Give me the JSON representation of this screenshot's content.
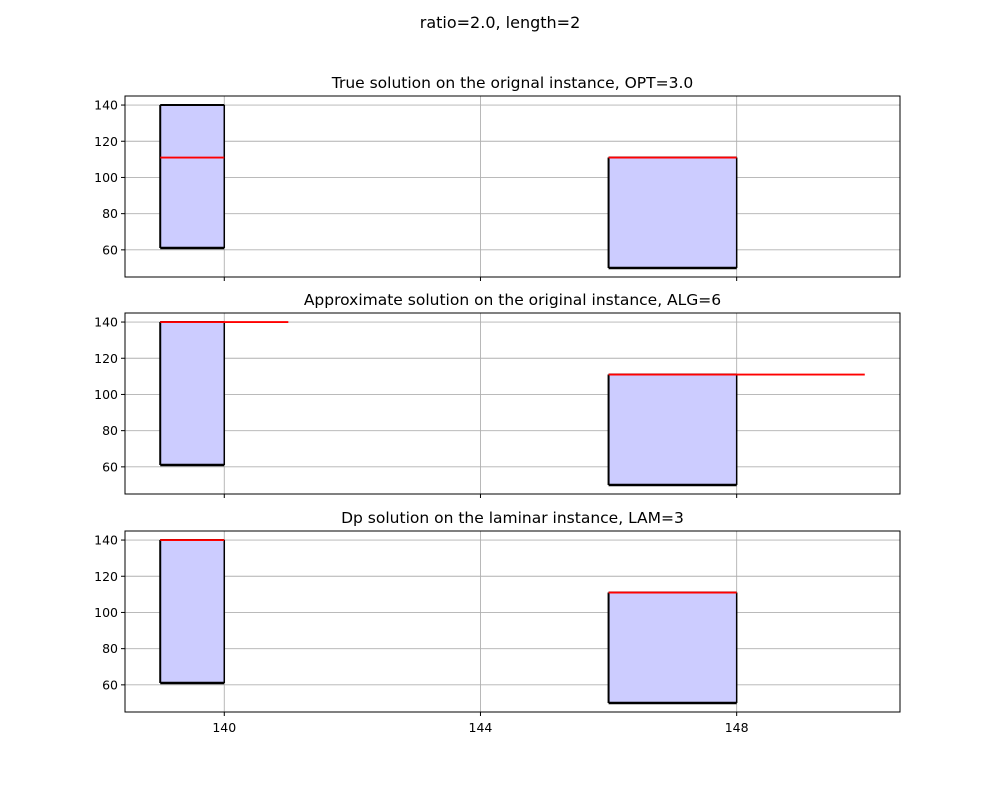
{
  "figure": {
    "suptitle": "ratio=2.0, length=2"
  },
  "chart_data": [
    {
      "type": "bar",
      "title": "True solution on the orignal instance, OPT=3.0",
      "xlabel": "",
      "ylabel": "",
      "xlim": [
        138.45,
        150.55
      ],
      "ylim": [
        45,
        145
      ],
      "xticks": [
        140,
        144,
        148
      ],
      "yticks": [
        60,
        80,
        100,
        120,
        140
      ],
      "show_xtick_labels": false,
      "grid": true,
      "fill_color": "#ccccff",
      "edge_color": "#000000",
      "line_color": "#ff0000",
      "boxes": [
        {
          "x0": 139,
          "x1": 140,
          "y0": 61,
          "y1": 140
        },
        {
          "x0": 146,
          "x1": 148,
          "y0": 50,
          "y1": 111
        }
      ],
      "lines": [
        {
          "x0": 139,
          "x1": 140,
          "y": 111
        },
        {
          "x0": 146,
          "x1": 148,
          "y": 111
        }
      ]
    },
    {
      "type": "bar",
      "title": "Approximate solution on the original instance, ALG=6",
      "xlabel": "",
      "ylabel": "",
      "xlim": [
        138.45,
        150.55
      ],
      "ylim": [
        45,
        145
      ],
      "xticks": [
        140,
        144,
        148
      ],
      "yticks": [
        60,
        80,
        100,
        120,
        140
      ],
      "show_xtick_labels": false,
      "grid": true,
      "fill_color": "#ccccff",
      "edge_color": "#000000",
      "line_color": "#ff0000",
      "boxes": [
        {
          "x0": 139,
          "x1": 140,
          "y0": 61,
          "y1": 140
        },
        {
          "x0": 146,
          "x1": 148,
          "y0": 50,
          "y1": 111
        }
      ],
      "lines": [
        {
          "x0": 139,
          "x1": 141,
          "y": 140
        },
        {
          "x0": 146,
          "x1": 150,
          "y": 111
        }
      ]
    },
    {
      "type": "bar",
      "title": "Dp solution on the laminar instance, LAM=3",
      "xlabel": "",
      "ylabel": "",
      "xlim": [
        138.45,
        150.55
      ],
      "ylim": [
        45,
        145
      ],
      "xticks": [
        140,
        144,
        148
      ],
      "yticks": [
        60,
        80,
        100,
        120,
        140
      ],
      "show_xtick_labels": true,
      "grid": true,
      "fill_color": "#ccccff",
      "edge_color": "#000000",
      "line_color": "#ff0000",
      "boxes": [
        {
          "x0": 139,
          "x1": 140,
          "y0": 61,
          "y1": 140
        },
        {
          "x0": 146,
          "x1": 148,
          "y0": 50,
          "y1": 111
        }
      ],
      "lines": [
        {
          "x0": 139,
          "x1": 140,
          "y": 140
        },
        {
          "x0": 146,
          "x1": 148,
          "y": 111
        }
      ]
    }
  ]
}
